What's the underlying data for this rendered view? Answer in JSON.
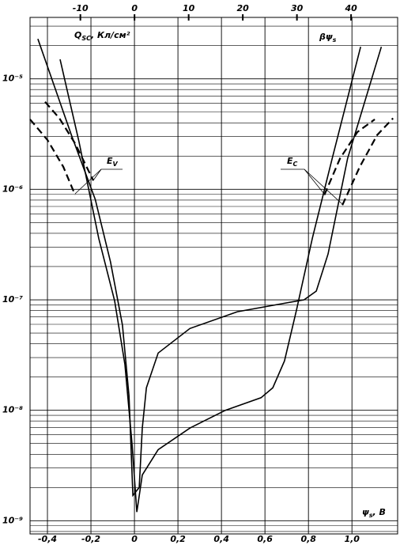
{
  "chart_data": {
    "type": "line",
    "y_label": {
      "main": "Q",
      "sub": "SC",
      "rest": ", Кл/см²"
    },
    "top_label": {
      "main": "βψ",
      "sub": "s"
    },
    "x_label": {
      "main": "ψ",
      "sub": "s",
      "rest": ", B"
    },
    "annotations": [
      {
        "main": "E",
        "sub": "V"
      },
      {
        "main": "E",
        "sub": "C"
      }
    ],
    "log_y": true,
    "grid": true,
    "minor_grid": true,
    "xlim": [
      -0.48,
      1.21
    ],
    "ylim": [
      7.6e-10,
      3.6e-05
    ],
    "xticks": [
      {
        "value": -0.4,
        "label": "-0,4"
      },
      {
        "value": -0.2,
        "label": "-0,2"
      },
      0,
      {
        "value": 0.2,
        "label": "0,2"
      },
      {
        "value": 0.4,
        "label": "0,4"
      },
      {
        "value": 0.6,
        "label": "0,6"
      },
      {
        "value": 0.8,
        "label": "0,8"
      },
      {
        "value": 1.0,
        "label": "1,0"
      }
    ],
    "x2lim": [
      -19.3,
      48.6
    ],
    "x2ticks": [
      -10,
      0,
      10,
      20,
      30,
      40
    ],
    "yticks": [
      {
        "value": 1e-09,
        "label": "10⁻⁹"
      },
      {
        "value": 1e-08,
        "label": "10⁻⁸"
      },
      {
        "value": 1e-07,
        "label": "10⁻⁷"
      },
      {
        "value": 1e-06,
        "label": "10⁻⁶"
      },
      {
        "value": 1e-05,
        "label": "10⁻⁵"
      }
    ],
    "series": [
      {
        "color": "#000000",
        "line_style": "solid",
        "x": [
          -0.444,
          -0.29,
          -0.18,
          -0.11,
          -0.055,
          -0.025,
          -0.007,
          0.022,
          0.036,
          0.055,
          0.109,
          0.255,
          0.473,
          0.69,
          0.78,
          0.836,
          0.89,
          0.98,
          1.135
        ],
        "values": [
          2.3e-05,
          3.1e-06,
          8.1e-07,
          2.2e-07,
          5.9e-08,
          1.35e-08,
          1.7e-09,
          2e-09,
          6.9e-09,
          1.6e-08,
          3.3e-08,
          5.5e-08,
          7.8e-08,
          9.3e-08,
          1e-07,
          1.2e-07,
          2.6e-07,
          1.9e-06,
          1.95e-05
        ]
      },
      {
        "color": "#000000",
        "line_style": "solid",
        "x": [
          -0.342,
          -0.255,
          -0.164,
          -0.091,
          -0.044,
          -0.011,
          0.011,
          0.036,
          0.109,
          0.255,
          0.418,
          0.582,
          0.636,
          0.69,
          0.745,
          0.818,
          0.909,
          1.04
        ],
        "values": [
          1.5e-05,
          2.7e-06,
          3.6e-07,
          9.8e-08,
          2.6e-08,
          5e-09,
          1.2e-09,
          2.6e-09,
          4.4e-09,
          6.9e-09,
          1e-08,
          1.3e-08,
          1.6e-08,
          2.8e-08,
          8.1e-08,
          3.6e-07,
          1.9e-06,
          1.95e-05
        ]
      },
      {
        "color": "#000000",
        "line_style": "dashed",
        "x": [
          -0.48,
          -0.4,
          -0.327,
          -0.273
        ],
        "values": [
          4.3e-06,
          2.8e-06,
          1.6e-06,
          8.9e-07
        ]
      },
      {
        "color": "#000000",
        "line_style": "dashed",
        "x": [
          -0.411,
          -0.345,
          -0.273,
          -0.189
        ],
        "values": [
          6.2e-06,
          4.4e-06,
          2.6e-06,
          1.2e-06
        ]
      },
      {
        "color": "#000000",
        "line_style": "dashed",
        "x": [
          0.873,
          0.945,
          1.025,
          1.105
        ],
        "values": [
          8.9e-07,
          1.9e-06,
          3.3e-06,
          4.3e-06
        ]
      },
      {
        "color": "#000000",
        "line_style": "dashed",
        "x": [
          0.956,
          1.036,
          1.116,
          1.189
        ],
        "values": [
          7.2e-07,
          1.6e-06,
          3.1e-06,
          4.4e-06
        ]
      }
    ]
  }
}
